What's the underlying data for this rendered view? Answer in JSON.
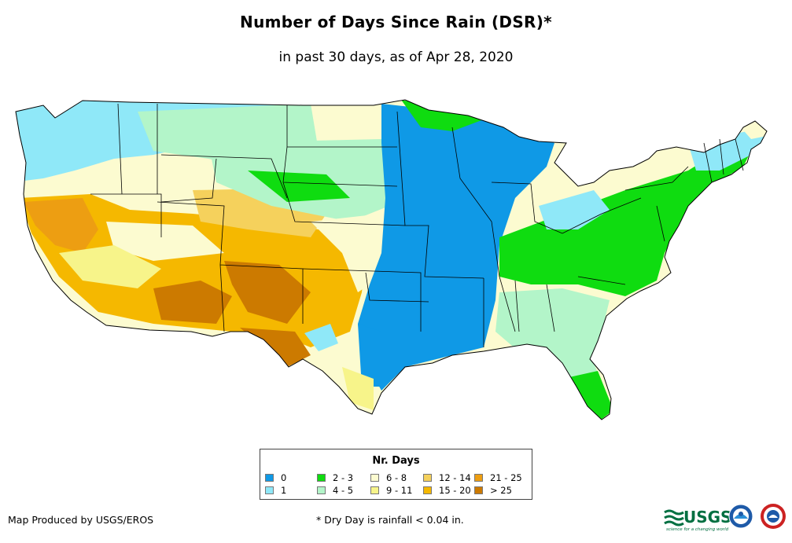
{
  "title": "Number of Days Since Rain (DSR)*",
  "subtitle": "in past 30 days, as of Apr 28, 2020",
  "legend": {
    "title": "Nr. Days",
    "items": [
      {
        "label": "0",
        "color": "#0f99e6"
      },
      {
        "label": "1",
        "color": "#8fe8f8"
      },
      {
        "label": "2 - 3",
        "color": "#0fdc10"
      },
      {
        "label": "4 - 5",
        "color": "#b3f5c9"
      },
      {
        "label": "6 - 8",
        "color": "#fcfbd0"
      },
      {
        "label": "9 - 11",
        "color": "#f7f48a"
      },
      {
        "label": "12 - 14",
        "color": "#f5d15c"
      },
      {
        "label": "15 - 20",
        "color": "#f5b800"
      },
      {
        "label": "21 - 25",
        "color": "#ed9e12"
      },
      {
        "label": "> 25",
        "color": "#cc7a00"
      }
    ]
  },
  "credit": "Map Produced by USGS/EROS",
  "footnote": "* Dry Day is rainfall < 0.04 in.",
  "logos": {
    "usgs_wordmark": "USGS",
    "usgs_tagline": "science for a changing world",
    "noaa_icon": "noaa-logo-icon",
    "nws_icon": "national-weather-service-logo-icon"
  }
}
